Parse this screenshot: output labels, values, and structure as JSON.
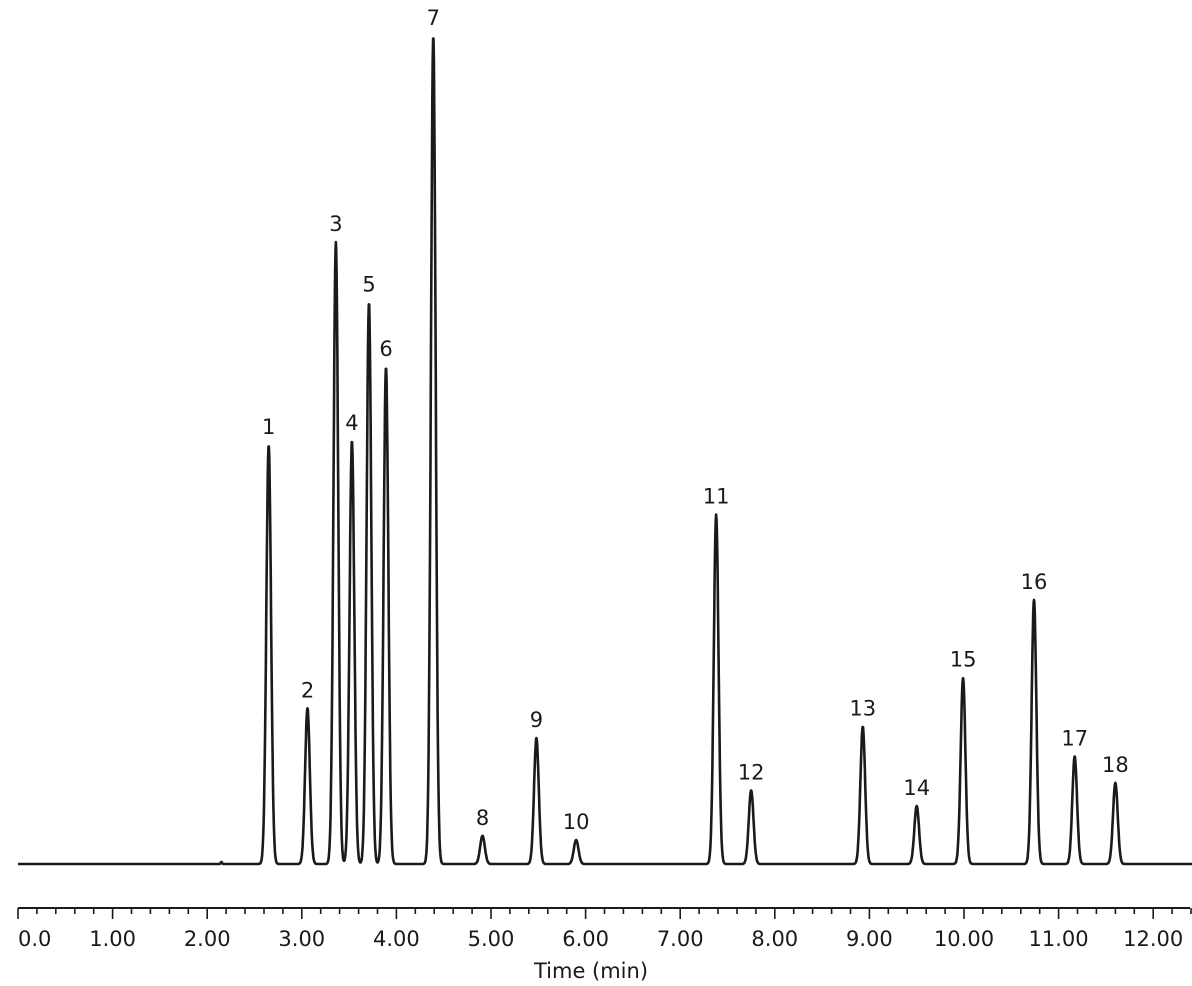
{
  "chart_data": {
    "type": "line",
    "title": "",
    "xlabel": "Time (min)",
    "ylabel": "",
    "xlim": [
      0,
      12.5
    ],
    "ylim": [
      0,
      100
    ],
    "grid": false,
    "x_ticks": [
      "0.0",
      "1.00",
      "2.00",
      "3.00",
      "4.00",
      "5.00",
      "6.00",
      "7.00",
      "8.00",
      "9.00",
      "10.00",
      "11.00",
      "12.00"
    ],
    "peaks": [
      {
        "label": "1",
        "rt": 2.65,
        "height": 50.6
      },
      {
        "label": "2",
        "rt": 3.06,
        "height": 18.8
      },
      {
        "label": "3",
        "rt": 3.36,
        "height": 75.1
      },
      {
        "label": "4",
        "rt": 3.53,
        "height": 51.1
      },
      {
        "label": "5",
        "rt": 3.71,
        "height": 67.8
      },
      {
        "label": "6",
        "rt": 3.89,
        "height": 60.0
      },
      {
        "label": "7",
        "rt": 4.39,
        "height": 100.0
      },
      {
        "label": "8",
        "rt": 4.91,
        "height": 3.4
      },
      {
        "label": "9",
        "rt": 5.48,
        "height": 15.2
      },
      {
        "label": "10",
        "rt": 5.9,
        "height": 2.9
      },
      {
        "label": "11",
        "rt": 7.38,
        "height": 42.2
      },
      {
        "label": "12",
        "rt": 7.75,
        "height": 8.9
      },
      {
        "label": "13",
        "rt": 8.93,
        "height": 16.6
      },
      {
        "label": "14",
        "rt": 9.5,
        "height": 7.0
      },
      {
        "label": "15",
        "rt": 9.99,
        "height": 22.5
      },
      {
        "label": "16",
        "rt": 10.74,
        "height": 31.9
      },
      {
        "label": "17",
        "rt": 11.17,
        "height": 13.0
      },
      {
        "label": "18",
        "rt": 11.6,
        "height": 9.8
      }
    ]
  }
}
